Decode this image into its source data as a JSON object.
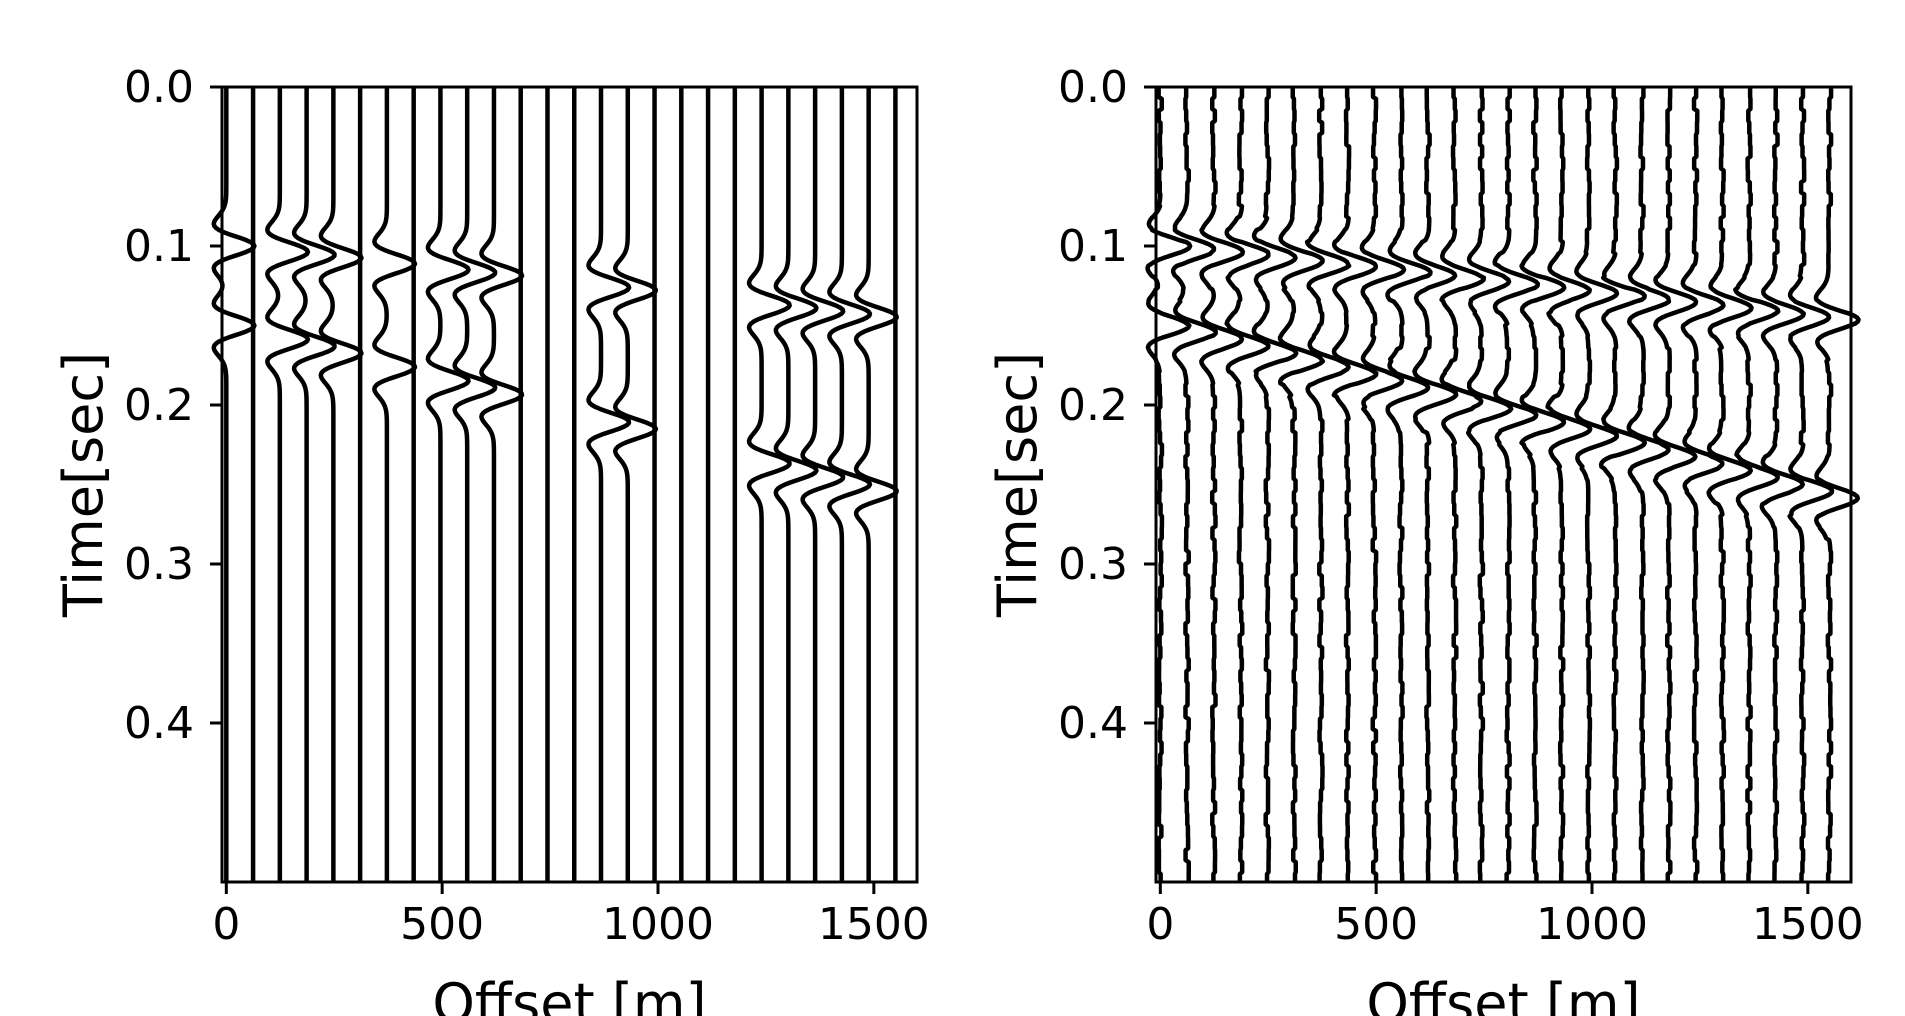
{
  "chart_data": [
    {
      "type": "wiggle",
      "description_series": "seismic shot gather with missing traces",
      "xlabel": "Offset [m]",
      "ylabel": "Time[sec]",
      "xlim": [
        -10,
        1600
      ],
      "ylim": [
        0.5,
        0.0
      ],
      "xticks": [
        0,
        500,
        1000,
        1500
      ],
      "xtick_labels": [
        "0",
        "500",
        "1000",
        "1500"
      ],
      "yticks": [
        0.0,
        0.1,
        0.2,
        0.3,
        0.4
      ],
      "ytick_labels": [
        "0.0",
        "0.1",
        "0.2",
        "0.3",
        "0.4"
      ],
      "trace_offsets": [
        0,
        62,
        124,
        186,
        248,
        310,
        372,
        434,
        496,
        558,
        620,
        682,
        744,
        806,
        868,
        930,
        992,
        1054,
        1116,
        1178,
        1240,
        1302,
        1364,
        1426,
        1488,
        1550
      ],
      "live_traces": [
        0,
        2,
        3,
        4,
        6,
        8,
        9,
        10,
        14,
        15,
        20,
        21,
        22,
        23,
        24
      ],
      "events": [
        {
          "t0": 0.1,
          "slope_s_per_m": 3e-05
        },
        {
          "t0": 0.15,
          "slope_s_per_m": 7e-05
        }
      ]
    },
    {
      "type": "wiggle",
      "description_series": "reconstructed seismic shot gather",
      "xlabel": "Offset [m]",
      "ylabel": "Time[sec]",
      "xlim": [
        -10,
        1600
      ],
      "ylim": [
        0.5,
        0.0
      ],
      "xticks": [
        0,
        500,
        1000,
        1500
      ],
      "xtick_labels": [
        "0",
        "500",
        "1000",
        "1500"
      ],
      "yticks": [
        0.0,
        0.1,
        0.2,
        0.3,
        0.4
      ],
      "ytick_labels": [
        "0.0",
        "0.1",
        "0.2",
        "0.3",
        "0.4"
      ],
      "trace_offsets": [
        0,
        62,
        124,
        186,
        248,
        310,
        372,
        434,
        496,
        558,
        620,
        682,
        744,
        806,
        868,
        930,
        992,
        1054,
        1116,
        1178,
        1240,
        1302,
        1364,
        1426,
        1488,
        1550
      ],
      "live_traces": "all",
      "events": [
        {
          "t0": 0.1,
          "slope_s_per_m": 3e-05
        },
        {
          "t0": 0.15,
          "slope_s_per_m": 7e-05
        }
      ]
    }
  ]
}
